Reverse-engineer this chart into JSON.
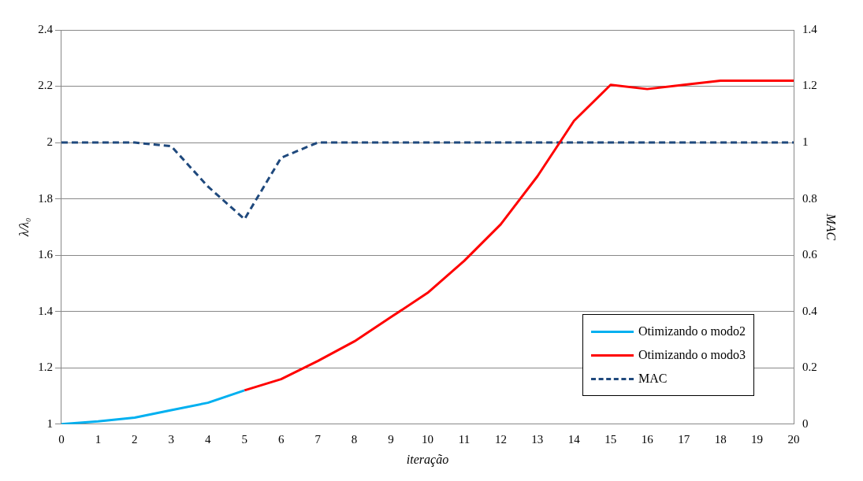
{
  "chart_data": {
    "type": "line",
    "xlabel": "iteração",
    "ylabel": "λ/λ₀",
    "y2label": "MAC",
    "x": [
      0,
      1,
      2,
      3,
      4,
      5,
      6,
      7,
      8,
      9,
      10,
      11,
      12,
      13,
      14,
      15,
      16,
      17,
      18,
      19,
      20
    ],
    "series": [
      {
        "name": "Otimizando o modo2",
        "color": "#00b0f0",
        "values": [
          1.0,
          1.01,
          1.023,
          1.05,
          1.076,
          1.12,
          null,
          null,
          null,
          null,
          null,
          null,
          null,
          null,
          null,
          null,
          null,
          null,
          null,
          null,
          null
        ]
      },
      {
        "name": "Otimizando o modo3",
        "color": "#ff0000",
        "values": [
          null,
          null,
          null,
          null,
          null,
          1.12,
          1.16,
          1.224,
          1.294,
          1.38,
          1.466,
          1.58,
          1.71,
          1.88,
          2.077,
          2.205,
          2.19,
          2.205,
          2.22,
          2.22,
          2.22
        ]
      },
      {
        "name": "MAC",
        "color": "#1f497d",
        "axis": "y2",
        "line_style": "dashed",
        "values": [
          1,
          1,
          1,
          0.987,
          0.844,
          0.728,
          0.946,
          1,
          1,
          1,
          1,
          1,
          1,
          1,
          1,
          1,
          1,
          1,
          1,
          1,
          1
        ]
      }
    ],
    "xlim": [
      0,
      20
    ],
    "xticks": [
      0,
      1,
      2,
      3,
      4,
      5,
      6,
      7,
      8,
      9,
      10,
      11,
      12,
      13,
      14,
      15,
      16,
      17,
      18,
      19,
      20
    ],
    "ylim": [
      1,
      2.4
    ],
    "yticks": [
      1,
      1.2,
      1.4,
      1.6,
      1.8,
      2,
      2.2,
      2.4
    ],
    "y2lim": [
      0,
      1.4
    ],
    "y2ticks": [
      0,
      0.2,
      0.4,
      0.6,
      0.8,
      1,
      1.2,
      1.4
    ],
    "grid": "y",
    "legend": "bottom right",
    "marker": "none",
    "line_style": "solid"
  }
}
